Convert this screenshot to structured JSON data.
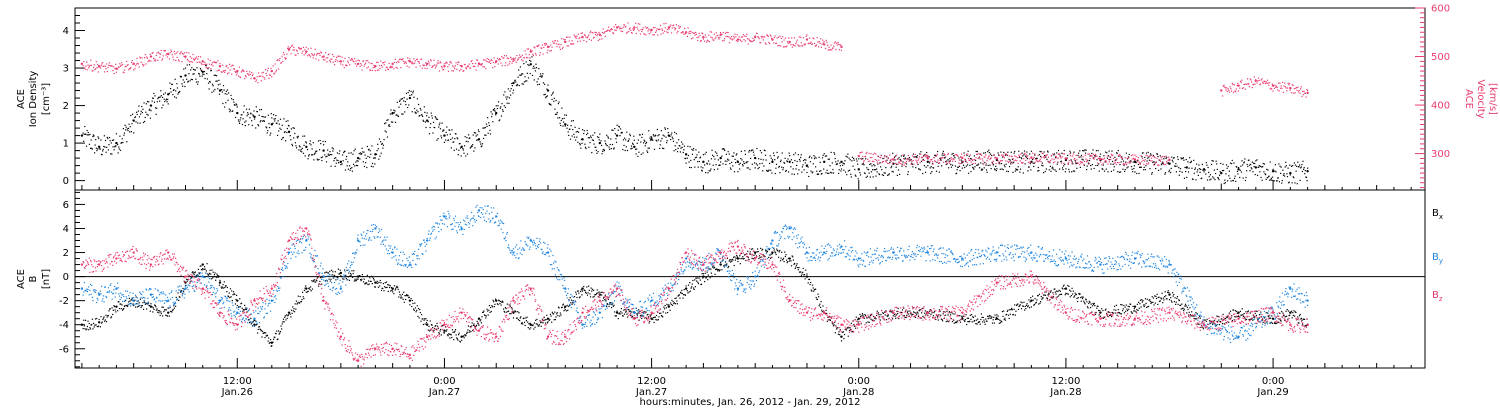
{
  "colors": {
    "black": "#000000",
    "pink": "#e83c6e",
    "blue": "#1f86e0"
  },
  "xaxis": {
    "title": "hours:minutes, Jan. 26, 2012 - Jan. 29, 2012",
    "ticks": [
      {
        "hours": 12,
        "time": "12:00",
        "date": "Jan.26"
      },
      {
        "hours": 24,
        "time": "0:00",
        "date": "Jan.27"
      },
      {
        "hours": 36,
        "time": "12:00",
        "date": "Jan.27"
      },
      {
        "hours": 48,
        "time": "0:00",
        "date": "Jan.28"
      },
      {
        "hours": 60,
        "time": "12:00",
        "date": "Jan.28"
      },
      {
        "hours": 72,
        "time": "0:00",
        "date": "Jan.29"
      }
    ]
  },
  "chart_data": [
    {
      "type": "scatter",
      "panel": "top",
      "xlim_hours": [
        2.6,
        80.8
      ],
      "left_axis": {
        "label_line1": "ACE",
        "label_line2": "Ion Density",
        "label_line3": "[cm⁻³]",
        "ylim": [
          -0.25,
          4.6
        ],
        "ticks": [
          "0",
          "1",
          "2",
          "3",
          "4"
        ]
      },
      "right_axis": {
        "label_line1": "ACE",
        "label_line2": "Velocity",
        "label_line3": "[km/s]",
        "ylim": [
          225,
          600
        ],
        "ticks": [
          "300",
          "400",
          "500",
          "600"
        ]
      },
      "series": [
        {
          "color": "#000000",
          "axis": "left",
          "x": [
            3,
            4,
            5,
            6,
            7,
            8,
            9,
            10,
            11,
            12,
            13,
            14,
            15,
            16,
            17,
            18,
            19,
            20,
            21,
            22,
            23,
            24,
            25,
            26,
            27,
            28,
            29,
            30,
            31,
            32,
            33,
            34,
            35,
            36,
            37,
            38,
            39,
            40,
            41,
            42,
            43,
            44,
            45,
            46,
            47,
            48,
            50,
            52,
            54,
            56,
            58,
            60,
            62,
            64,
            66,
            67,
            68,
            69,
            70,
            71,
            72,
            73,
            74
          ],
          "values": [
            1.2,
            0.9,
            1.0,
            1.6,
            2.0,
            2.3,
            2.8,
            2.9,
            2.4,
            1.8,
            1.7,
            1.5,
            1.3,
            0.9,
            0.8,
            0.5,
            0.6,
            0.7,
            1.8,
            2.2,
            1.6,
            1.2,
            0.9,
            1.1,
            1.8,
            2.6,
            3.1,
            2.4,
            1.5,
            1.1,
            1.0,
            1.2,
            0.9,
            1.1,
            1.2,
            0.7,
            0.5,
            0.6,
            0.5,
            0.6,
            0.5,
            0.5,
            0.4,
            0.5,
            0.5,
            0.3,
            0.45,
            0.5,
            0.5,
            0.55,
            0.5,
            0.55,
            0.55,
            0.5,
            0.45,
            0.35,
            0.3,
            0.2,
            0.3,
            0.35,
            0.25,
            0.2,
            0.25
          ]
        },
        {
          "color": "#e83c6e",
          "axis": "right",
          "x": [
            3,
            4,
            5,
            6,
            7,
            8,
            9,
            10,
            11,
            12,
            13,
            14,
            15,
            16,
            17,
            18,
            19,
            20,
            21,
            22,
            23,
            24,
            25,
            26,
            27,
            28,
            29,
            30,
            31,
            32,
            33,
            34,
            35,
            36,
            37,
            38,
            39,
            40,
            41,
            42,
            43,
            44,
            45,
            46,
            47,
            47.5,
            48,
            50,
            52,
            54,
            56,
            58,
            60,
            62,
            64,
            66,
            67,
            68,
            69,
            70,
            71,
            72,
            73,
            74
          ],
          "values": [
            485,
            480,
            475,
            485,
            500,
            505,
            500,
            490,
            480,
            470,
            455,
            470,
            515,
            510,
            500,
            490,
            485,
            480,
            485,
            490,
            485,
            480,
            480,
            485,
            490,
            495,
            510,
            520,
            530,
            540,
            545,
            560,
            560,
            555,
            560,
            550,
            540,
            545,
            535,
            540,
            535,
            530,
            535,
            525,
            520,
            null,
            295,
            288,
            290,
            291,
            290,
            292,
            290,
            289,
            288,
            287,
            null,
            null,
            430,
            440,
            450,
            440,
            435,
            425
          ]
        }
      ]
    },
    {
      "type": "scatter",
      "panel": "bottom",
      "xlim_hours": [
        2.6,
        80.8
      ],
      "left_axis": {
        "label_line1": "ACE",
        "label_line2": "B",
        "label_line3": "[nT]",
        "ylim": [
          -7.6,
          7.2
        ],
        "ticks": [
          "-6",
          "-4",
          "-2",
          "0",
          "2",
          "4",
          "6"
        ]
      },
      "zero_line": 0,
      "legend": [
        {
          "label": "B",
          "sub": "x",
          "color": "#000000"
        },
        {
          "label": "B",
          "sub": "y",
          "color": "#1f86e0"
        },
        {
          "label": "B",
          "sub": "z",
          "color": "#e83c6e"
        }
      ],
      "series": [
        {
          "name": "Bx",
          "color": "#000000",
          "x": [
            3,
            4,
            5,
            6,
            7,
            8,
            9,
            10,
            11,
            12,
            13,
            14,
            15,
            16,
            17,
            18,
            19,
            20,
            21,
            22,
            23,
            24,
            25,
            26,
            27,
            28,
            29,
            30,
            31,
            32,
            33,
            34,
            35,
            36,
            37,
            38,
            39,
            40,
            41,
            42,
            43,
            44,
            45,
            46,
            47,
            48,
            50,
            52,
            54,
            56,
            58,
            60,
            62,
            64,
            66,
            68,
            70,
            72,
            73,
            74
          ],
          "values": [
            -4,
            -3.8,
            -2.5,
            -2,
            -2.5,
            -3,
            -0.5,
            1,
            -0.5,
            -2,
            -4,
            -5.5,
            -3,
            -1,
            0,
            0.3,
            0,
            -0.5,
            -1,
            -2,
            -4,
            -4.5,
            -5,
            -3.5,
            -2,
            -3,
            -4,
            -3.5,
            -2.5,
            -1,
            -1.5,
            -3,
            -3,
            -3.5,
            -2.5,
            -1,
            0,
            1,
            1.5,
            2,
            2,
            1.5,
            0,
            -3,
            -5,
            -3.5,
            -3,
            -3,
            -3.5,
            -3.5,
            -2,
            -1,
            -3,
            -2.5,
            -1.5,
            -4,
            -3,
            -3.5,
            -3,
            -4
          ]
        },
        {
          "name": "By",
          "color": "#1f86e0",
          "x": [
            3,
            4,
            5,
            6,
            7,
            8,
            9,
            10,
            11,
            12,
            13,
            14,
            15,
            16,
            17,
            18,
            19,
            20,
            21,
            22,
            23,
            24,
            25,
            26,
            27,
            28,
            29,
            30,
            31,
            32,
            33,
            34,
            35,
            36,
            37,
            38,
            39,
            40,
            41,
            42,
            43,
            44,
            45,
            46,
            47,
            48,
            50,
            52,
            54,
            56,
            58,
            60,
            62,
            64,
            66,
            68,
            70,
            72,
            73,
            74
          ],
          "values": [
            -1,
            -1.5,
            -1,
            -2,
            -1.5,
            -2,
            -1,
            0,
            -2,
            -3,
            -3.5,
            -2,
            2,
            3,
            0,
            -1,
            3,
            4,
            2,
            1,
            3,
            5,
            4,
            5.5,
            5,
            2,
            3,
            2,
            -1,
            -4,
            -3,
            -1,
            -3,
            -2,
            -1,
            1.5,
            1,
            2,
            -1,
            0,
            3,
            4,
            2,
            2,
            2.5,
            1.5,
            2,
            2,
            1.5,
            2,
            2,
            1.5,
            1,
            1.5,
            1,
            -4,
            -5,
            -3,
            -1,
            -2
          ]
        },
        {
          "name": "Bz",
          "color": "#e83c6e",
          "x": [
            3,
            4,
            5,
            6,
            7,
            8,
            9,
            10,
            11,
            12,
            13,
            14,
            15,
            16,
            17,
            18,
            19,
            20,
            21,
            22,
            23,
            24,
            25,
            26,
            27,
            28,
            29,
            30,
            31,
            32,
            33,
            34,
            35,
            36,
            37,
            38,
            39,
            40,
            41,
            42,
            43,
            44,
            45,
            46,
            47,
            48,
            50,
            52,
            54,
            56,
            58,
            60,
            62,
            64,
            66,
            68,
            70,
            72,
            73,
            74
          ],
          "values": [
            1,
            1,
            1.5,
            2,
            1,
            2,
            0,
            -1,
            -3,
            -4,
            -2,
            -1,
            3,
            4,
            -2,
            -5,
            -7,
            -6,
            -6,
            -6.5,
            -5,
            -4,
            -3,
            -4.5,
            -5,
            -2,
            -1,
            -5,
            -5,
            -3,
            -2,
            -1,
            -3.5,
            -3,
            -1,
            2,
            1,
            2,
            2.5,
            1.5,
            1,
            -2,
            -3,
            -3,
            -4,
            -4,
            -3,
            -3,
            -3,
            -0.5,
            0,
            -3,
            -3.5,
            -3.5,
            -3,
            -4,
            -3.5,
            -3,
            -4,
            -4
          ]
        }
      ]
    }
  ]
}
